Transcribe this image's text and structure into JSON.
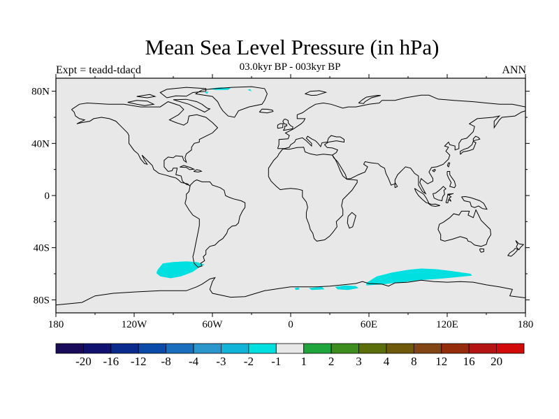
{
  "title": "Mean Sea Level Pressure (in hPa)",
  "subtitle": "03.0kyr BP - 003kyr BP",
  "left_label": "Expt = teadd-tdacd",
  "right_label": "ANN",
  "map": {
    "projection": "cylindrical-equidistant",
    "lon_range": [
      -180,
      180
    ],
    "lat_range": [
      -90,
      90
    ],
    "background_color": "#e8e8e8",
    "coastline_color": "#000000",
    "x_ticks": [
      {
        "value": -180,
        "label": "180"
      },
      {
        "value": -120,
        "label": "120W"
      },
      {
        "value": -60,
        "label": "60W"
      },
      {
        "value": 0,
        "label": "0"
      },
      {
        "value": 60,
        "label": "60E"
      },
      {
        "value": 120,
        "label": "120E"
      },
      {
        "value": 180,
        "label": "180"
      }
    ],
    "y_ticks": [
      {
        "value": 80,
        "label": "80N"
      },
      {
        "value": 40,
        "label": "40N"
      },
      {
        "value": 0,
        "label": "0"
      },
      {
        "value": -40,
        "label": "40S"
      },
      {
        "value": -80,
        "label": "80S"
      }
    ],
    "anomaly_regions": [
      {
        "name": "south-pacific-anomaly",
        "bin": "-2 to -1",
        "color": "#00e0e0"
      },
      {
        "name": "southern-ocean-anomaly",
        "bin": "-2 to -1",
        "color": "#00e0e0"
      },
      {
        "name": "greenland-anomaly",
        "bin": "-2 to -1",
        "color": "#00e0e0"
      }
    ]
  },
  "colorbar": {
    "colors": [
      "#1a0a5a",
      "#10106e",
      "#0a2a8c",
      "#0a4aa8",
      "#1a6ebe",
      "#2a96cc",
      "#10b4d8",
      "#00e0e0",
      "#e8e8e8",
      "#1ea53c",
      "#3c8c1e",
      "#5a6e0a",
      "#6e5a0a",
      "#824614",
      "#962d0a",
      "#b41414",
      "#d20a0a"
    ],
    "labels": [
      "-20",
      "-16",
      "-12",
      "-8",
      "-4",
      "-3",
      "-2",
      "-1",
      "1",
      "2",
      "3",
      "4",
      "8",
      "12",
      "16",
      "20"
    ]
  }
}
